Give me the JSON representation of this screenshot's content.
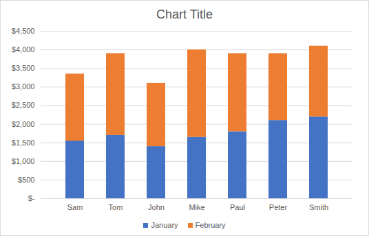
{
  "chart_data": {
    "type": "bar",
    "title": "Chart Title",
    "stacked": true,
    "grid": true,
    "legend": "bottom",
    "categories": [
      "Sam",
      "Tom",
      "John",
      "Mike",
      "Paul",
      "Peter",
      "Smith"
    ],
    "series": [
      {
        "name": "January",
        "color": "#4472c4",
        "values": [
          1550,
          1700,
          1400,
          1650,
          1800,
          2100,
          2200
        ]
      },
      {
        "name": "February",
        "color": "#ed7d31",
        "values": [
          1800,
          2200,
          1700,
          2350,
          2100,
          1800,
          1900
        ]
      }
    ],
    "ylim": [
      0,
      4500
    ],
    "yticks": [
      {
        "value": 0,
        "label": "$-"
      },
      {
        "value": 500,
        "label": "$500"
      },
      {
        "value": 1000,
        "label": "$1,000"
      },
      {
        "value": 1500,
        "label": "$1,500"
      },
      {
        "value": 2000,
        "label": "$2,000"
      },
      {
        "value": 2500,
        "label": "$2,500"
      },
      {
        "value": 3000,
        "label": "$3,000"
      },
      {
        "value": 3500,
        "label": "$3,500"
      },
      {
        "value": 4000,
        "label": "$4,000"
      },
      {
        "value": 4500,
        "label": "$4,500"
      }
    ]
  }
}
